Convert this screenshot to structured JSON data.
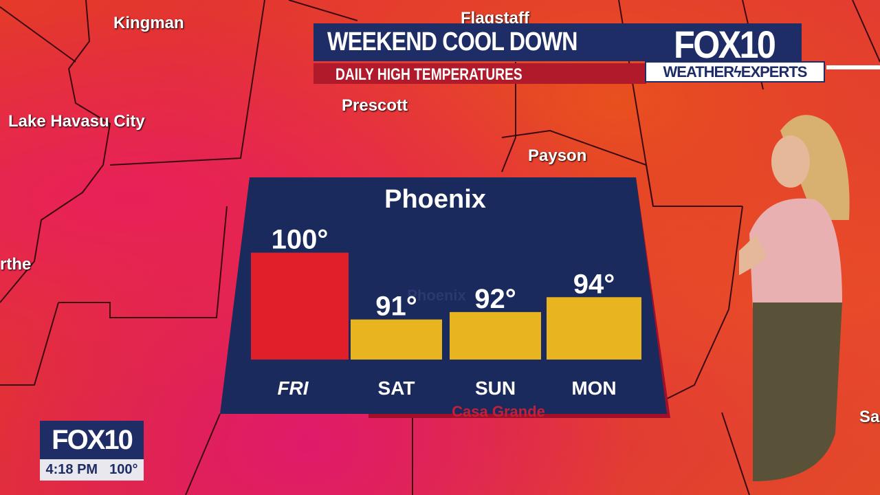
{
  "map_labels": {
    "kingman": "Kingman",
    "flagstaff": "Flagstaff",
    "lake_havasu": "Lake Havasu City",
    "prescott": "Prescott",
    "payson": "Payson",
    "blythe_partial": "rthe",
    "right_partial": "Sa",
    "phoenix_faint": "Phoenix",
    "casa_grande_faint": "Casa Grande"
  },
  "banner": {
    "title": "WEEKEND COOL DOWN",
    "subtitle": "DAILY HIGH TEMPERATURES"
  },
  "logo": {
    "brand": "FOX10",
    "tagline_left": "WEATHER",
    "tagline_right": "EXPERTS"
  },
  "bug": {
    "brand": "FOX10",
    "time": "4:18 PM",
    "temp": "100°"
  },
  "colors": {
    "panel": "#1a2a5c",
    "hot": "#e01f2a",
    "warm": "#e8b41f",
    "banner": "#1e2d66",
    "banner_sub": "#b01a2a"
  },
  "chart_data": {
    "type": "bar",
    "title": "Phoenix",
    "categories": [
      "FRI",
      "SAT",
      "SUN",
      "MON"
    ],
    "values": [
      100,
      91,
      92,
      94
    ],
    "labels": [
      "100°",
      "91°",
      "92°",
      "94°"
    ],
    "bar_colors": [
      "#e01f2a",
      "#e8b41f",
      "#e8b41f",
      "#e8b41f"
    ]
  }
}
